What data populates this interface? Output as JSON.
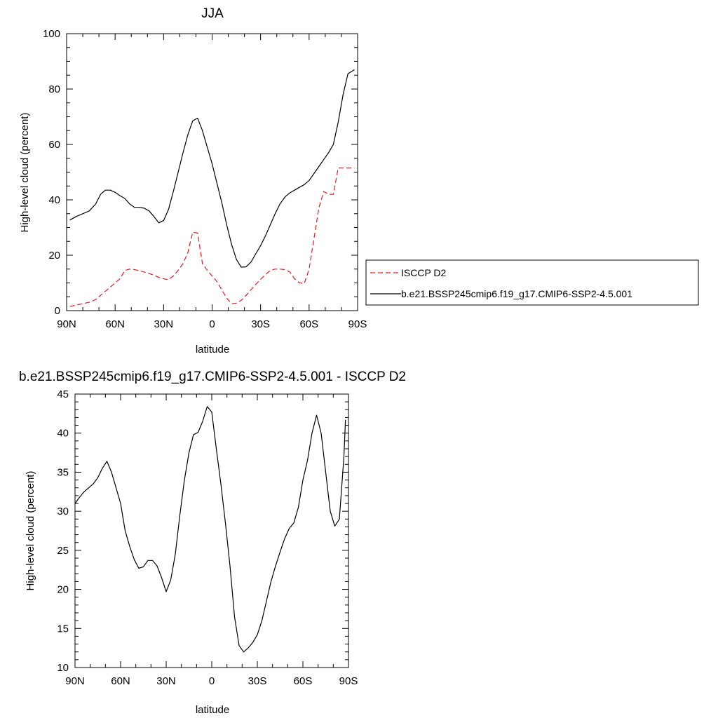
{
  "chart_data": [
    {
      "type": "line",
      "title": "JJA",
      "xlabel": "latitude",
      "ylabel": "High-level cloud (percent)",
      "xlim": [
        -90,
        90
      ],
      "ylim": [
        0,
        100
      ],
      "x_ticks": [
        -90,
        -60,
        -30,
        0,
        30,
        60,
        90
      ],
      "x_tick_labels": [
        "90N",
        "60N",
        "30N",
        "0",
        "30S",
        "60S",
        "90S"
      ],
      "y_ticks": [
        0,
        20,
        40,
        60,
        80,
        100
      ],
      "y_tick_labels": [
        "0",
        "20",
        "40",
        "60",
        "80",
        "100"
      ],
      "legend_position": "right",
      "x": [
        -88,
        -84,
        -80,
        -76,
        -72,
        -69,
        -66,
        -63,
        -60,
        -57,
        -54,
        -51,
        -48,
        -45,
        -42,
        -39,
        -36,
        -33,
        -30,
        -27,
        -24,
        -21,
        -18,
        -15,
        -12,
        -9,
        -6,
        -3,
        0,
        3,
        6,
        9,
        12,
        15,
        18,
        21,
        24,
        27,
        30,
        33,
        36,
        39,
        42,
        45,
        48,
        51,
        54,
        57,
        60,
        63,
        66,
        69,
        72,
        75,
        78,
        81,
        84,
        88
      ],
      "series": [
        {
          "name": "ISCCP D2",
          "color": "#e41a1c",
          "dash": "dashed",
          "values": [
            1.5,
            2.0,
            2.5,
            3.0,
            4.0,
            5.5,
            7.0,
            8.5,
            10.0,
            11.5,
            14.5,
            15.0,
            14.8,
            14.4,
            13.9,
            13.4,
            12.8,
            12.0,
            11.5,
            11.2,
            12.5,
            14.5,
            17.0,
            21.0,
            28.3,
            28.0,
            17.0,
            14.5,
            12.5,
            10.5,
            7.5,
            4.5,
            2.5,
            2.7,
            3.7,
            5.5,
            7.5,
            9.5,
            11.3,
            13.0,
            14.5,
            15.0,
            15.0,
            14.8,
            14.0,
            11.5,
            10.0,
            9.8,
            15.0,
            26.0,
            37.0,
            43.0,
            42.0,
            42.0,
            51.5,
            51.5,
            51.5,
            51.5
          ]
        },
        {
          "name": "b.e21.BSSP245cmip6.f19_g17.CMIP6-SSP2-4.5.001",
          "color": "#000000",
          "dash": "solid",
          "values": [
            32.7,
            34.0,
            35.0,
            36.0,
            38.5,
            42.0,
            43.5,
            43.5,
            42.7,
            41.5,
            40.5,
            38.5,
            37.3,
            37.3,
            37.0,
            36.0,
            34.0,
            31.7,
            32.5,
            36.5,
            43.0,
            50.0,
            57.0,
            63.5,
            68.5,
            69.5,
            65.0,
            59.0,
            53.0,
            46.0,
            39.0,
            31.0,
            24.0,
            18.5,
            15.7,
            15.8,
            17.5,
            20.5,
            23.5,
            27.0,
            31.0,
            35.0,
            38.5,
            41.0,
            42.5,
            43.5,
            44.5,
            45.5,
            47.0,
            49.5,
            52.0,
            54.5,
            57.0,
            60.0,
            68.0,
            78.0,
            85.5,
            87.0
          ]
        }
      ]
    },
    {
      "type": "line",
      "title": "b.e21.BSSP245cmip6.f19_g17.CMIP6-SSP2-4.5.001 - ISCCP D2",
      "xlabel": "latitude",
      "ylabel": "High-level cloud (percent)",
      "xlim": [
        -90,
        90
      ],
      "ylim": [
        10,
        45
      ],
      "x_ticks": [
        -90,
        -60,
        -30,
        0,
        30,
        60,
        90
      ],
      "x_tick_labels": [
        "90N",
        "60N",
        "30N",
        "0",
        "30S",
        "60S",
        "90S"
      ],
      "y_ticks": [
        10,
        15,
        20,
        25,
        30,
        35,
        40,
        45
      ],
      "y_tick_labels": [
        "10",
        "15",
        "20",
        "25",
        "30",
        "35",
        "40",
        "45"
      ],
      "x": [
        -90,
        -87,
        -84,
        -81,
        -78,
        -75,
        -72,
        -69,
        -66,
        -63,
        -60,
        -57,
        -54,
        -51,
        -48,
        -45,
        -42,
        -39,
        -36,
        -33,
        -30,
        -27,
        -24,
        -21,
        -18,
        -15,
        -12,
        -9,
        -6,
        -3,
        0,
        3,
        6,
        9,
        12,
        15,
        18,
        21,
        24,
        27,
        30,
        33,
        36,
        39,
        42,
        45,
        48,
        51,
        54,
        57,
        60,
        63,
        66,
        69,
        72,
        75,
        78,
        81,
        84,
        87,
        88
      ],
      "series": [
        {
          "name": "",
          "color": "#000000",
          "dash": "solid",
          "values": [
            31.0,
            31.8,
            32.5,
            33.0,
            33.5,
            34.3,
            35.5,
            36.4,
            35.0,
            33.0,
            31.0,
            27.5,
            25.5,
            23.8,
            22.7,
            22.9,
            23.7,
            23.7,
            23.0,
            21.5,
            19.7,
            21.2,
            24.5,
            29.5,
            34.0,
            37.5,
            39.8,
            40.1,
            41.5,
            43.4,
            42.7,
            38.0,
            33.5,
            28.5,
            23.0,
            16.5,
            12.8,
            12.0,
            12.5,
            13.2,
            14.2,
            16.0,
            18.5,
            21.0,
            23.0,
            24.8,
            26.5,
            27.8,
            28.5,
            30.5,
            34.0,
            36.5,
            40.0,
            42.3,
            40.0,
            35.0,
            30.0,
            28.1,
            29.0,
            37.0,
            41.7
          ]
        }
      ]
    }
  ]
}
